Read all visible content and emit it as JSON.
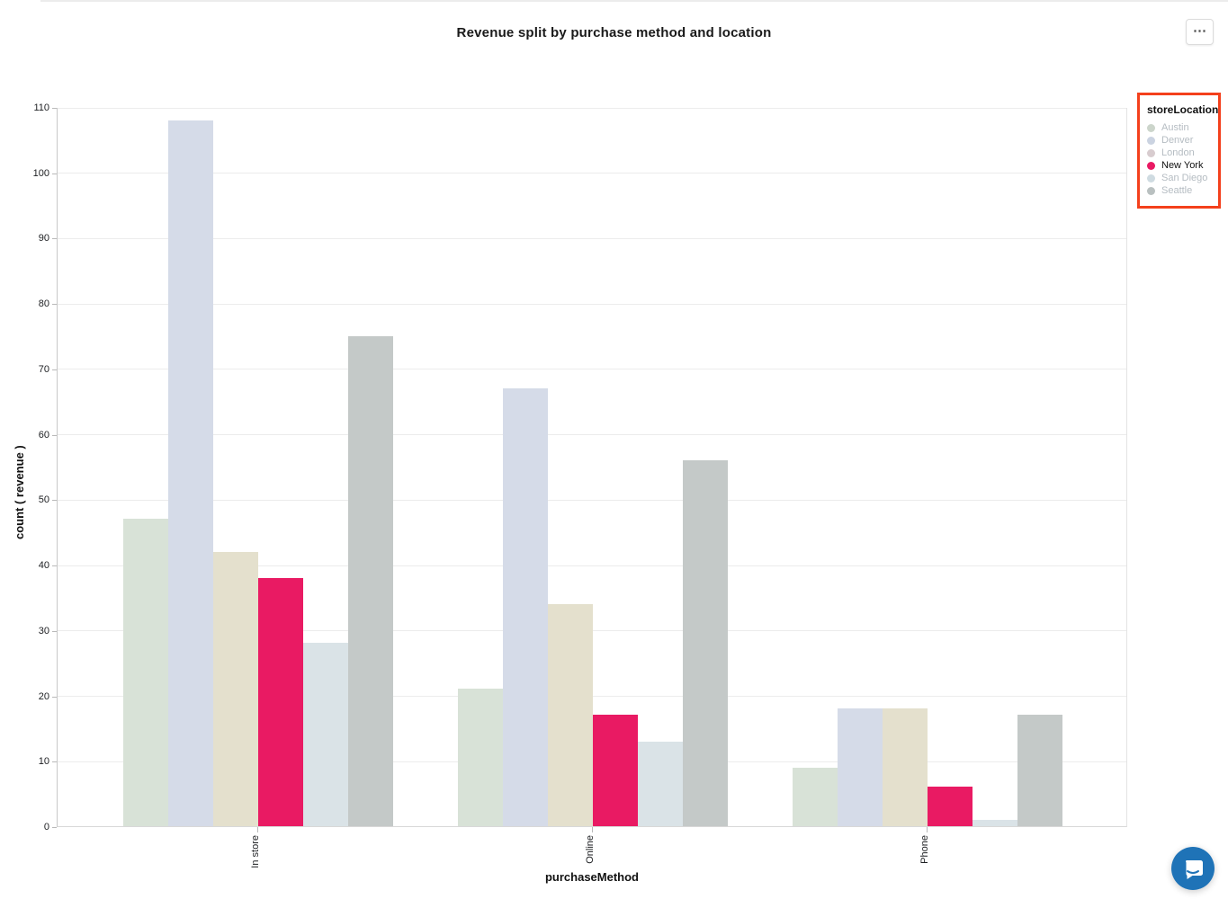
{
  "page": {
    "title": "Revenue split by purchase method and location",
    "more_options_label": "⋯"
  },
  "legend": {
    "title": "storeLocation",
    "highlight_border_color": "#f4401c",
    "items": [
      {
        "label": "Austin",
        "dot_color": "#ccd5cb",
        "active": false
      },
      {
        "label": "Denver",
        "dot_color": "#cbd3e1",
        "active": false
      },
      {
        "label": "London",
        "dot_color": "#d8cccf",
        "active": false
      },
      {
        "label": "New York",
        "dot_color": "#e91a63",
        "active": true
      },
      {
        "label": "San Diego",
        "dot_color": "#cfdbe1",
        "active": false
      },
      {
        "label": "Seattle",
        "dot_color": "#b9c0c0",
        "active": false
      }
    ]
  },
  "chart_data": {
    "type": "bar",
    "title": "Revenue split by purchase method and location",
    "xlabel": "purchaseMethod",
    "ylabel": "count ( revenue )",
    "categories": [
      "In store",
      "Online",
      "Phone"
    ],
    "series": [
      {
        "name": "Austin",
        "color": "#d8e2d7",
        "values": [
          47,
          21,
          9
        ]
      },
      {
        "name": "Denver",
        "color": "#d5dbe8",
        "values": [
          108,
          67,
          18
        ]
      },
      {
        "name": "London",
        "color": "#e4e0cd",
        "values": [
          42,
          34,
          18
        ]
      },
      {
        "name": "New York",
        "color": "#e91a63",
        "values": [
          38,
          17,
          6
        ]
      },
      {
        "name": "San Diego",
        "color": "#dae3e7",
        "values": [
          28,
          13,
          1
        ]
      },
      {
        "name": "Seattle",
        "color": "#c4c9c8",
        "values": [
          75,
          56,
          17
        ]
      }
    ],
    "ylim": [
      0,
      110
    ],
    "ytick_step": 10,
    "grid": true,
    "legend_position": "right",
    "highlighted_series": "New York",
    "accent_color": "#e91a63",
    "chat_button_color": "#1f73b7"
  }
}
